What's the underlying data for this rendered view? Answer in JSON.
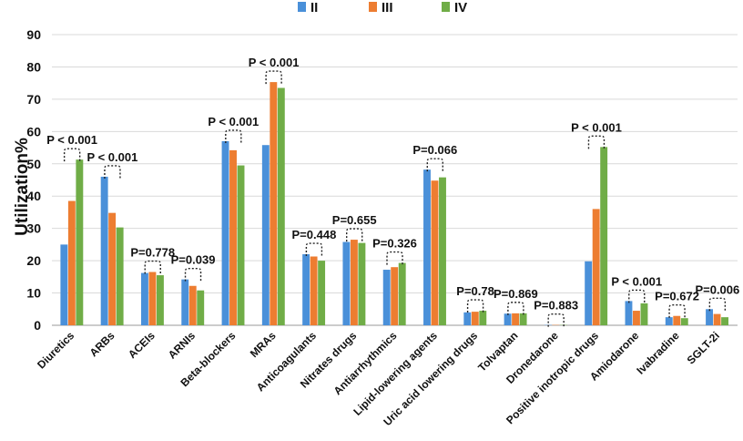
{
  "chart_data": {
    "type": "bar",
    "title": "",
    "xlabel": "",
    "ylabel": "Utilization%",
    "ylim": [
      0,
      90
    ],
    "yticks": [
      0,
      10,
      20,
      30,
      40,
      50,
      60,
      70,
      80,
      90
    ],
    "grid": true,
    "legend_position": "top-center",
    "categories": [
      "Diuretics",
      "ARBs",
      "ACEIs",
      "ARNIs",
      "Beta-blockers",
      "MRAs",
      "Anticoagulants",
      "Nitrates drugs",
      "Antiarrhythmics",
      "Lipid-lowering agents",
      "Uric acid lowering drugs",
      "Tolvaptan",
      "Dronedarone",
      "Positive inotropic drugs",
      "Amiodarone",
      "Ivabradine",
      "SGLT-2i"
    ],
    "series": [
      {
        "name": "II",
        "color": "#4a90d9",
        "values": [
          25.0,
          46.0,
          16.2,
          14.2,
          57.0,
          55.8,
          22.0,
          25.8,
          17.2,
          48.2,
          4.0,
          3.6,
          0.1,
          19.8,
          7.5,
          2.5,
          5.0
        ]
      },
      {
        "name": "III",
        "color": "#ed7d31",
        "values": [
          38.5,
          34.8,
          16.5,
          12.2,
          54.2,
          75.3,
          21.3,
          26.5,
          18.0,
          44.8,
          4.2,
          3.7,
          0.1,
          36.0,
          4.5,
          2.9,
          3.5
        ]
      },
      {
        "name": "IV",
        "color": "#70ad47",
        "values": [
          51.3,
          30.3,
          15.5,
          10.8,
          49.5,
          73.5,
          20.0,
          25.5,
          19.3,
          45.8,
          4.5,
          3.7,
          0.1,
          55.2,
          6.8,
          2.2,
          2.5
        ]
      }
    ],
    "annotations": [
      "P < 0.001",
      "P < 0.001",
      "P=0.778",
      "P=0.039",
      "P < 0.001",
      "P < 0.001",
      "P=0.448",
      "P=0.655",
      "P=0.326",
      "P=0.066",
      "P=0.78",
      "P=0.869",
      "P=0.883",
      "P < 0.001",
      "P < 0.001",
      "P=0.672",
      "P=0.006"
    ]
  }
}
